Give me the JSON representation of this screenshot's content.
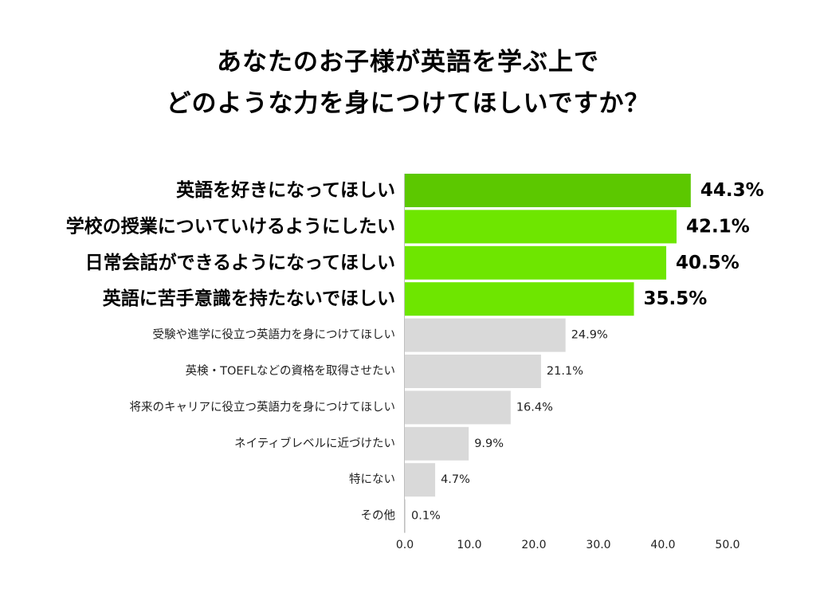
{
  "title_lines": [
    "あなたのお子様が英語を学ぶ上で",
    "どのような力を身につけてほしいですか？"
  ],
  "colors": {
    "top_bar": "#5cc800",
    "highlight_bar": "#6ee600",
    "other_bar": "#d9d9d9",
    "axis_line": "#bfbfbf"
  },
  "chart_data": {
    "type": "bar",
    "orientation": "horizontal",
    "title": "あなたのお子様が英語を学ぶ上で どのような力を身につけてほしいですか？",
    "categories": [
      "英語を好きになってほしい",
      "学校の授業についていけるようにしたい",
      "日常会話ができるようになってほしい",
      "英語に苦手意識を持たないでほしい",
      "受験や進学に役立つ英語力を身につけてほしい",
      "英検・TOEFLなどの資格を取得させたい",
      "将来のキャリアに役立つ英語力を身につけてほしい",
      "ネイティブレベルに近づけたい",
      "特にない",
      "その他"
    ],
    "values": [
      44.3,
      42.1,
      40.5,
      35.5,
      24.9,
      21.1,
      16.4,
      9.9,
      4.7,
      0.1
    ],
    "value_labels": [
      "44.3%",
      "42.1%",
      "40.5%",
      "35.5%",
      "24.9%",
      "21.1%",
      "16.4%",
      "9.9%",
      "4.7%",
      "0.1%"
    ],
    "highlighted_count": 4,
    "xlim": [
      0,
      50
    ],
    "xticks": [
      "0.0",
      "10.0",
      "20.0",
      "30.0",
      "40.0",
      "50.0"
    ],
    "grid": false,
    "legend": "none"
  }
}
